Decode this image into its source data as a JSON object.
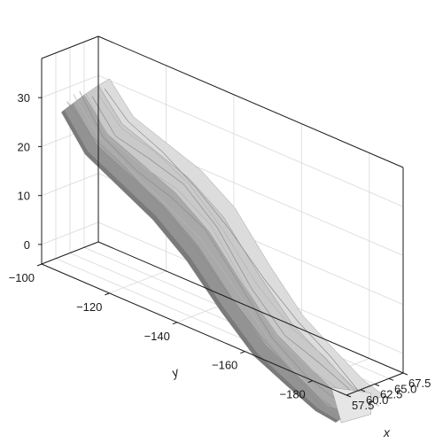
{
  "chart_data": {
    "type": "surface",
    "title": "",
    "xlabel": "x",
    "ylabel": "y",
    "zlabel": "",
    "xlim": [
      57.5,
      67.5
    ],
    "ylim": [
      -100,
      -190
    ],
    "zlim": [
      -4,
      38
    ],
    "grid": true,
    "x_ticks": [
      "57.5",
      "60.0",
      "62.5",
      "65.0",
      "67.5"
    ],
    "y_ticks": [
      "-100",
      "-120",
      "-140",
      "-160",
      "-180"
    ],
    "z_ticks": [
      "0",
      "10",
      "20",
      "30"
    ],
    "surface_centerline": [
      {
        "y": -105,
        "z": 30
      },
      {
        "y": -112,
        "z": 24
      },
      {
        "y": -122,
        "z": 21
      },
      {
        "y": -132,
        "z": 18
      },
      {
        "y": -142,
        "z": 13
      },
      {
        "y": -152,
        "z": 5
      },
      {
        "y": -162,
        "z": -2
      },
      {
        "y": -172,
        "z": -6
      },
      {
        "y": -180,
        "z": -9
      },
      {
        "y": -186,
        "z": -10
      }
    ],
    "colors": {
      "surface_dark": "#7a7a7a",
      "surface_mid": "#a9a9a9",
      "surface_light": "#dcdcdc"
    }
  }
}
